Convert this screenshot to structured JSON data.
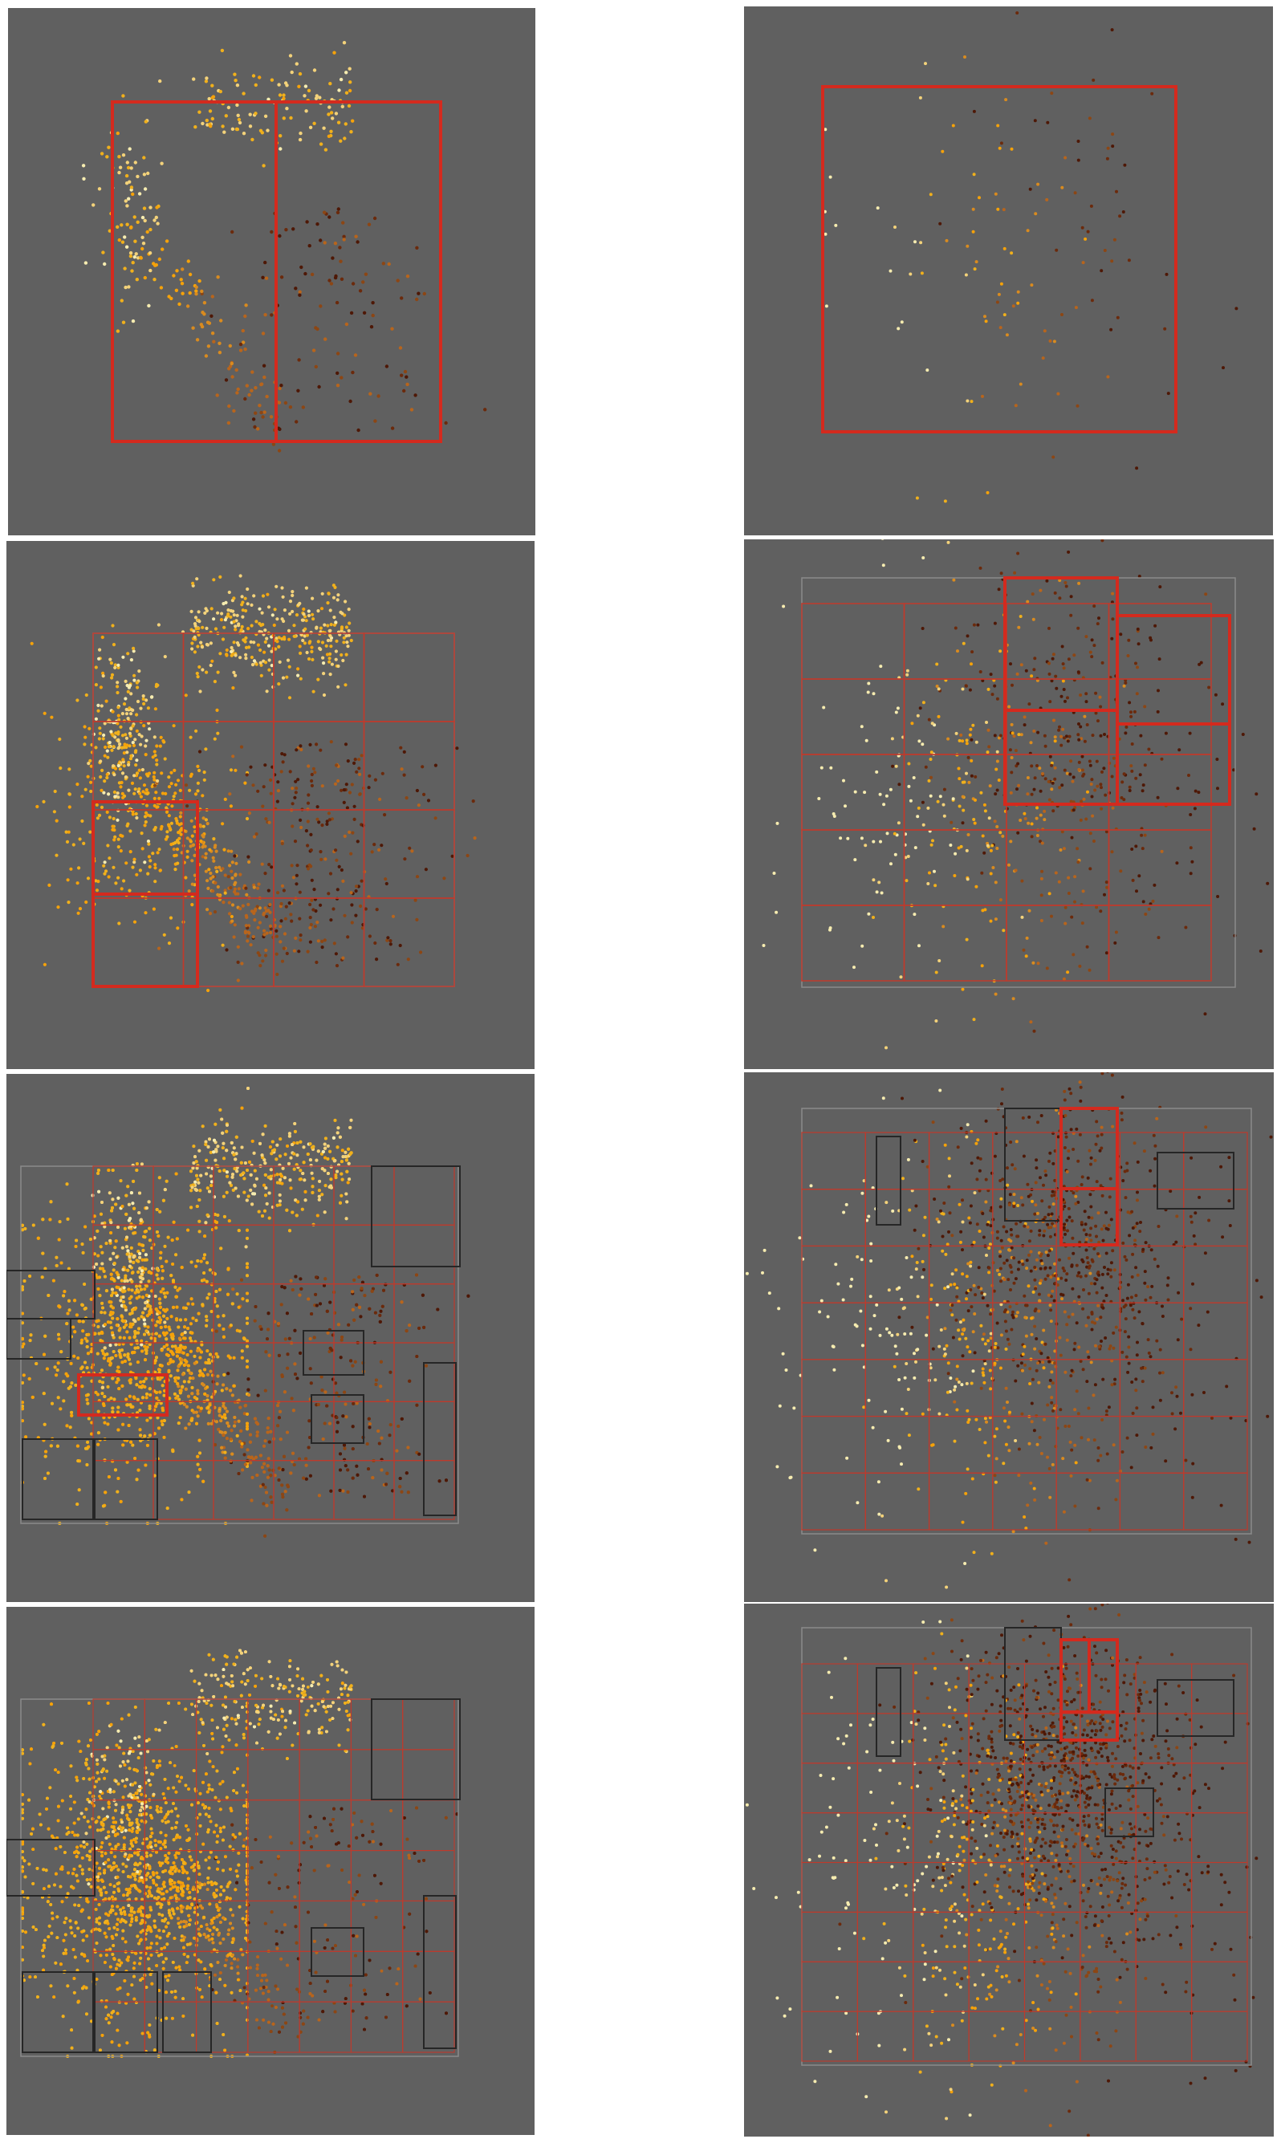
{
  "colors": {
    "background": "#606060",
    "bbox_light": "#8a8a8a",
    "box_red": "#d42a1e",
    "box_red_thin": "#bf3a2c",
    "box_dark": "#262626",
    "point_palette": [
      "#f6ecb0",
      "#f3d27a",
      "#f0b01c",
      "#f5a20a",
      "#d98b1f",
      "#b8651c",
      "#8c4614",
      "#6b2a0c",
      "#4e1806"
    ]
  },
  "layout": {
    "columns": [
      "left",
      "right"
    ],
    "rows": 4,
    "description_free": true
  },
  "panels": [
    {
      "id": "p1",
      "column": "left",
      "row": 1,
      "stage": 1,
      "point_count": 420
    },
    {
      "id": "p2",
      "column": "right",
      "row": 1,
      "stage": 1,
      "point_count": 120
    },
    {
      "id": "p3",
      "column": "left",
      "row": 2,
      "stage": 2,
      "point_count": 1300
    },
    {
      "id": "p4",
      "column": "right",
      "row": 2,
      "stage": 2,
      "point_count": 650
    },
    {
      "id": "p5",
      "column": "left",
      "row": 3,
      "stage": 3,
      "point_count": 4000
    },
    {
      "id": "p6",
      "column": "right",
      "row": 3,
      "stage": 3,
      "point_count": 1100
    },
    {
      "id": "p7",
      "column": "left",
      "row": 4,
      "stage": 4,
      "point_count": 9000
    },
    {
      "id": "p8",
      "column": "right",
      "row": 4,
      "stage": 4,
      "point_count": 1500
    }
  ]
}
